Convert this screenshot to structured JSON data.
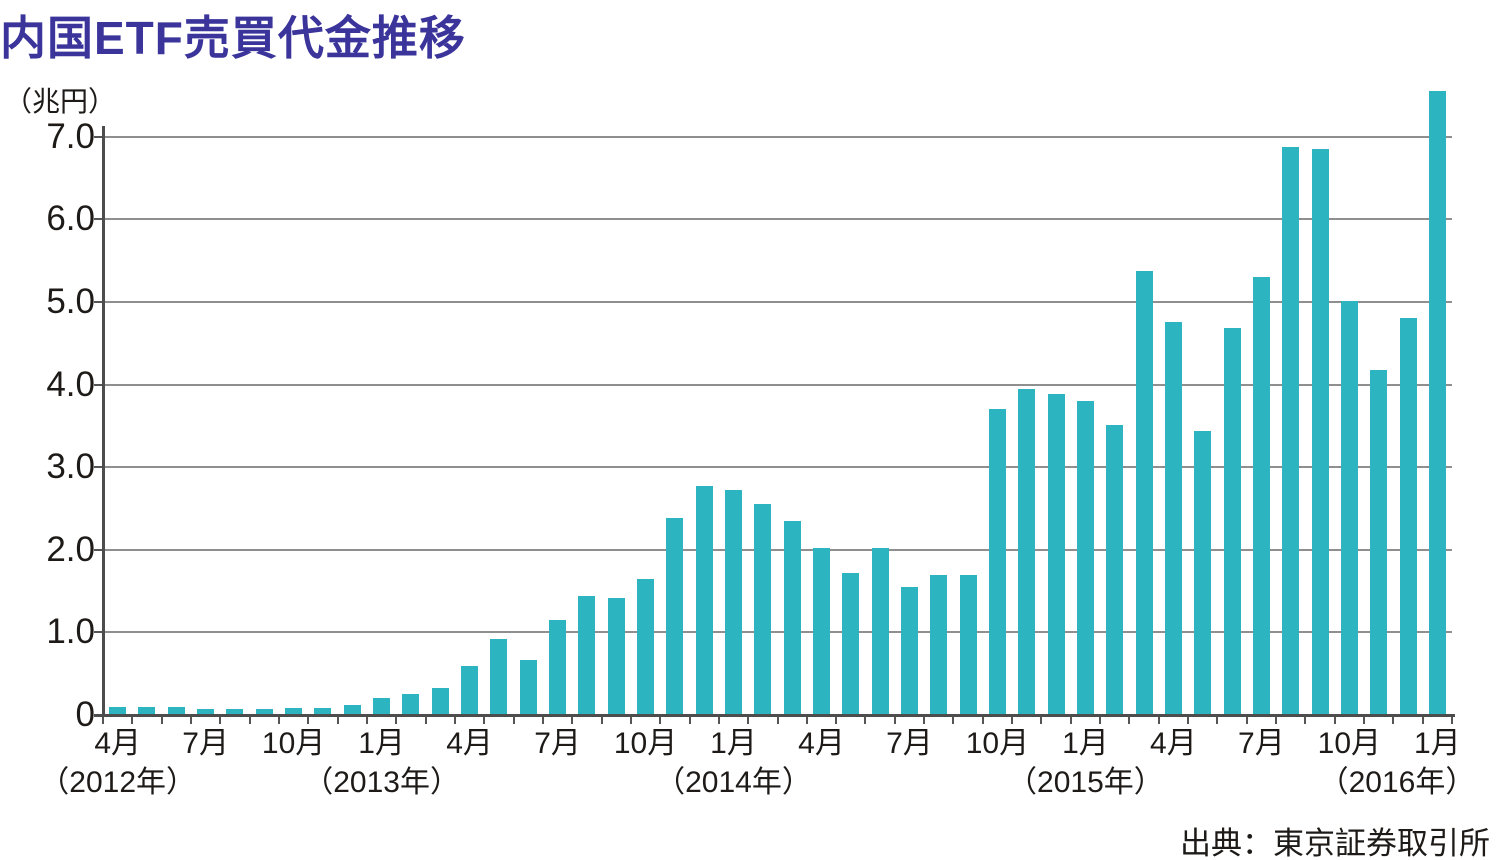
{
  "chart_data": {
    "type": "bar",
    "title": "内国ETF売買代金推移",
    "unit_label": "（兆円）",
    "source": "出典：東京証券取引所",
    "series_name": "内国ETF売買代金",
    "bar_color": "#2cb4c0",
    "grid": true,
    "legend": "none",
    "ylim": [
      0,
      7.0
    ],
    "y_ticks": [
      {
        "label": "7.0",
        "value": 7.0
      },
      {
        "label": "6.0",
        "value": 6.0
      },
      {
        "label": "5.0",
        "value": 5.0
      },
      {
        "label": "4.0",
        "value": 4.0
      },
      {
        "label": "3.0",
        "value": 3.0
      },
      {
        "label": "2.0",
        "value": 2.0
      },
      {
        "label": "1.0",
        "value": 1.0
      },
      {
        "label": "0",
        "value": 0.0
      }
    ],
    "points": [
      {
        "month": "2012-04",
        "value": 0.1,
        "axis_label": "4月",
        "year_label": "（2012年）"
      },
      {
        "month": "2012-05",
        "value": 0.1,
        "axis_label": "",
        "year_label": ""
      },
      {
        "month": "2012-06",
        "value": 0.1,
        "axis_label": "",
        "year_label": ""
      },
      {
        "month": "2012-07",
        "value": 0.07,
        "axis_label": "7月",
        "year_label": ""
      },
      {
        "month": "2012-08",
        "value": 0.07,
        "axis_label": "",
        "year_label": ""
      },
      {
        "month": "2012-09",
        "value": 0.07,
        "axis_label": "",
        "year_label": ""
      },
      {
        "month": "2012-10",
        "value": 0.08,
        "axis_label": "10月",
        "year_label": ""
      },
      {
        "month": "2012-11",
        "value": 0.09,
        "axis_label": "",
        "year_label": ""
      },
      {
        "month": "2012-12",
        "value": 0.12,
        "axis_label": "",
        "year_label": ""
      },
      {
        "month": "2013-01",
        "value": 0.2,
        "axis_label": "1月",
        "year_label": "（2013年）"
      },
      {
        "month": "2013-02",
        "value": 0.25,
        "axis_label": "",
        "year_label": ""
      },
      {
        "month": "2013-03",
        "value": 0.33,
        "axis_label": "",
        "year_label": ""
      },
      {
        "month": "2013-04",
        "value": 0.59,
        "axis_label": "4月",
        "year_label": ""
      },
      {
        "month": "2013-05",
        "value": 0.92,
        "axis_label": "",
        "year_label": ""
      },
      {
        "month": "2013-06",
        "value": 0.66,
        "axis_label": "",
        "year_label": ""
      },
      {
        "month": "2013-07",
        "value": 1.15,
        "axis_label": "7月",
        "year_label": ""
      },
      {
        "month": "2013-08",
        "value": 1.44,
        "axis_label": "",
        "year_label": ""
      },
      {
        "month": "2013-09",
        "value": 1.42,
        "axis_label": "",
        "year_label": ""
      },
      {
        "month": "2013-10",
        "value": 1.65,
        "axis_label": "10月",
        "year_label": ""
      },
      {
        "month": "2013-11",
        "value": 2.38,
        "axis_label": "",
        "year_label": ""
      },
      {
        "month": "2013-12",
        "value": 2.77,
        "axis_label": "",
        "year_label": ""
      },
      {
        "month": "2014-01",
        "value": 2.72,
        "axis_label": "1月",
        "year_label": "（2014年）"
      },
      {
        "month": "2014-02",
        "value": 2.55,
        "axis_label": "",
        "year_label": ""
      },
      {
        "month": "2014-03",
        "value": 2.35,
        "axis_label": "",
        "year_label": ""
      },
      {
        "month": "2014-04",
        "value": 2.02,
        "axis_label": "4月",
        "year_label": ""
      },
      {
        "month": "2014-05",
        "value": 1.72,
        "axis_label": "",
        "year_label": ""
      },
      {
        "month": "2014-06",
        "value": 2.02,
        "axis_label": "",
        "year_label": ""
      },
      {
        "month": "2014-07",
        "value": 1.55,
        "axis_label": "7月",
        "year_label": ""
      },
      {
        "month": "2014-08",
        "value": 1.7,
        "axis_label": "",
        "year_label": ""
      },
      {
        "month": "2014-09",
        "value": 1.7,
        "axis_label": "",
        "year_label": ""
      },
      {
        "month": "2014-10",
        "value": 3.7,
        "axis_label": "10月",
        "year_label": ""
      },
      {
        "month": "2014-11",
        "value": 3.95,
        "axis_label": "",
        "year_label": ""
      },
      {
        "month": "2014-12",
        "value": 3.89,
        "axis_label": "",
        "year_label": ""
      },
      {
        "month": "2015-01",
        "value": 3.8,
        "axis_label": "1月",
        "year_label": "（2015年）"
      },
      {
        "month": "2015-02",
        "value": 3.51,
        "axis_label": "",
        "year_label": ""
      },
      {
        "month": "2015-03",
        "value": 5.38,
        "axis_label": "",
        "year_label": ""
      },
      {
        "month": "2015-04",
        "value": 4.76,
        "axis_label": "4月",
        "year_label": ""
      },
      {
        "month": "2015-05",
        "value": 3.44,
        "axis_label": "",
        "year_label": ""
      },
      {
        "month": "2015-06",
        "value": 4.69,
        "axis_label": "",
        "year_label": ""
      },
      {
        "month": "2015-07",
        "value": 5.3,
        "axis_label": "7月",
        "year_label": ""
      },
      {
        "month": "2015-08",
        "value": 6.88,
        "axis_label": "",
        "year_label": ""
      },
      {
        "month": "2015-09",
        "value": 6.85,
        "axis_label": "",
        "year_label": ""
      },
      {
        "month": "2015-10",
        "value": 5.01,
        "axis_label": "10月",
        "year_label": ""
      },
      {
        "month": "2015-11",
        "value": 4.18,
        "axis_label": "",
        "year_label": ""
      },
      {
        "month": "2015-12",
        "value": 4.81,
        "axis_label": "",
        "year_label": ""
      },
      {
        "month": "2016-01",
        "value": 7.56,
        "axis_label": "1月",
        "year_label": "（2016年）"
      }
    ]
  }
}
